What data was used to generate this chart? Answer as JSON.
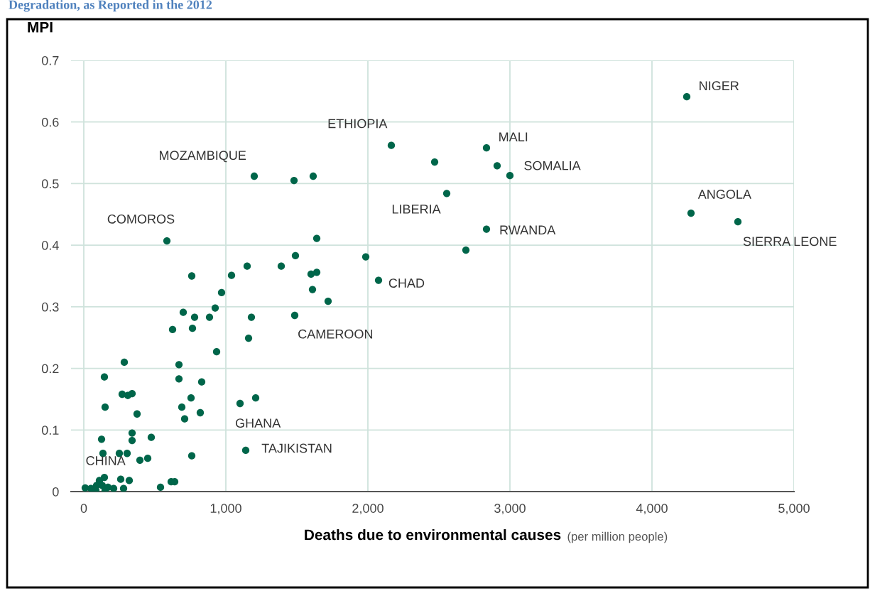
{
  "chart_data": {
    "type": "scatter",
    "title": "Degradation, as Reported in the 2012",
    "ylabel": "MPI",
    "xlabel": "Deaths due to environmental causes",
    "x": [
      4245,
      4275,
      4605,
      2835,
      2910,
      3000,
      2470,
      2165,
      2555,
      2835,
      2690,
      1985,
      2075,
      1720,
      1640,
      1615,
      1480,
      1200,
      585,
      1490,
      1390,
      1150,
      1040,
      760,
      1600,
      1640,
      1610,
      970,
      925,
      1485,
      700,
      780,
      1180,
      885,
      765,
      625,
      1160,
      935,
      670,
      285,
      145,
      670,
      830,
      270,
      310,
      340,
      755,
      1210,
      1100,
      150,
      690,
      375,
      820,
      710,
      340,
      125,
      340,
      475,
      760,
      1140,
      135,
      250,
      305,
      395,
      450,
      260,
      320,
      615,
      640,
      540,
      280,
      10,
      50,
      90,
      110,
      145,
      130,
      170,
      210,
      150,
      85
    ],
    "series": [
      {
        "color": "#00664a",
        "values": [
          0.641,
          0.452,
          0.438,
          0.558,
          0.529,
          0.513,
          0.535,
          0.562,
          0.484,
          0.426,
          0.392,
          0.381,
          0.343,
          0.309,
          0.411,
          0.512,
          0.505,
          0.512,
          0.407,
          0.383,
          0.366,
          0.366,
          0.351,
          0.35,
          0.353,
          0.356,
          0.328,
          0.323,
          0.298,
          0.286,
          0.291,
          0.283,
          0.283,
          0.283,
          0.265,
          0.263,
          0.249,
          0.227,
          0.206,
          0.21,
          0.186,
          0.183,
          0.178,
          0.158,
          0.156,
          0.159,
          0.152,
          0.152,
          0.143,
          0.137,
          0.137,
          0.126,
          0.128,
          0.118,
          0.095,
          0.085,
          0.083,
          0.088,
          0.058,
          0.067,
          0.062,
          0.062,
          0.062,
          0.051,
          0.054,
          0.02,
          0.018,
          0.016,
          0.016,
          0.007,
          0.005,
          0.006,
          0.005,
          0.01,
          0.018,
          0.023,
          0.01,
          0.007,
          0.005,
          0.002,
          0.002
        ]
      }
    ],
    "xlim": [
      -90,
      5000
    ],
    "ylim": [
      0,
      0.7
    ],
    "xticks": [
      0,
      {
        "value": 1000,
        "label": "1,000"
      },
      {
        "value": 2000,
        "label": "2,000"
      },
      {
        "value": 3000,
        "label": "3,000"
      },
      {
        "value": 4000,
        "label": "4,000"
      },
      {
        "value": 5000,
        "label": "5,000"
      }
    ],
    "yticks": [
      0,
      0.1,
      0.2,
      0.3,
      0.4,
      0.5,
      0.6,
      0.7
    ],
    "grid": true,
    "marker": "circle",
    "annotations": [
      {
        "text": "NIGER",
        "x": 4245,
        "y": 0.641
      },
      {
        "text": "ETHIOPIA",
        "x": 2165,
        "y": 0.562
      },
      {
        "text": "MALI",
        "x": 2835,
        "y": 0.558
      },
      {
        "text": "MOZAMBIQUE",
        "x": 1200,
        "y": 0.512
      },
      {
        "text": "SOMALIA",
        "x": 3000,
        "y": 0.513
      },
      {
        "text": "LIBERIA",
        "x": 2555,
        "y": 0.484
      },
      {
        "text": "ANGOLA",
        "x": 4275,
        "y": 0.452
      },
      {
        "text": "COMOROS",
        "x": 585,
        "y": 0.407
      },
      {
        "text": "RWANDA",
        "x": 2835,
        "y": 0.426
      },
      {
        "text": "SIERRA LEONE",
        "x": 4605,
        "y": 0.438
      },
      {
        "text": "CHAD",
        "x": 2075,
        "y": 0.343
      },
      {
        "text": "CAMEROON",
        "x": 1485,
        "y": 0.286
      },
      {
        "text": "GHANA",
        "x": 1100,
        "y": 0.143
      },
      {
        "text": "TAJIKISTAN",
        "x": 1140,
        "y": 0.067
      },
      {
        "text": "CHINA",
        "x": 110,
        "y": 0.018
      },
      "(per million people)"
    ]
  }
}
